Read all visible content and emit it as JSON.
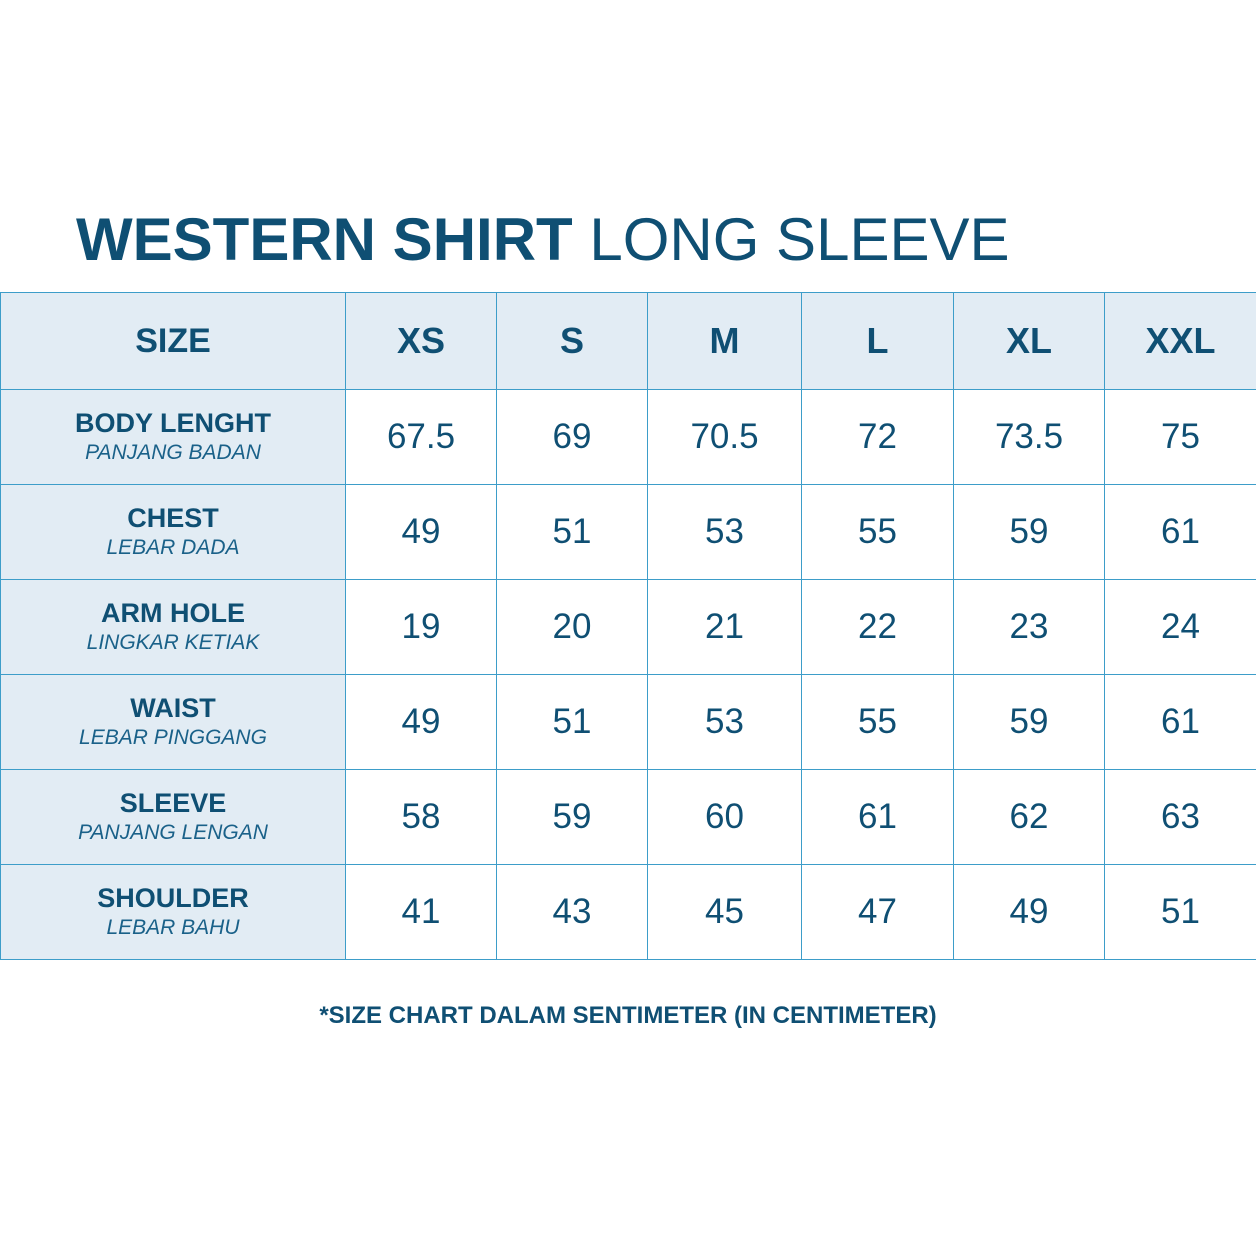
{
  "title": {
    "bold": "WESTERN SHIRT",
    "light": "LONG SLEEVE"
  },
  "table": {
    "header": {
      "label": "SIZE",
      "sizes": [
        "XS",
        "S",
        "M",
        "L",
        "XL",
        "XXL"
      ]
    },
    "rows": [
      {
        "label": "BODY LENGHT",
        "sublabel": "PANJANG BADAN",
        "values": [
          "67.5",
          "69",
          "70.5",
          "72",
          "73.5",
          "75"
        ]
      },
      {
        "label": "CHEST",
        "sublabel": "LEBAR DADA",
        "values": [
          "49",
          "51",
          "53",
          "55",
          "59",
          "61"
        ]
      },
      {
        "label": "ARM HOLE",
        "sublabel": "LINGKAR KETIAK",
        "values": [
          "19",
          "20",
          "21",
          "22",
          "23",
          "24"
        ]
      },
      {
        "label": "WAIST",
        "sublabel": "LEBAR PINGGANG",
        "values": [
          "49",
          "51",
          "53",
          "55",
          "59",
          "61"
        ]
      },
      {
        "label": "SLEEVE",
        "sublabel": "PANJANG LENGAN",
        "values": [
          "58",
          "59",
          "60",
          "61",
          "62",
          "63"
        ]
      },
      {
        "label": "SHOULDER",
        "sublabel": "LEBAR BAHU",
        "values": [
          "41",
          "43",
          "45",
          "47",
          "49",
          "51"
        ]
      }
    ]
  },
  "footnote": "*SIZE CHART DALAM SENTIMETER (IN CENTIMETER)",
  "colors": {
    "primary_text": "#0f4f73",
    "header_background": "#e2ecf4",
    "border": "#3d9dc9"
  }
}
